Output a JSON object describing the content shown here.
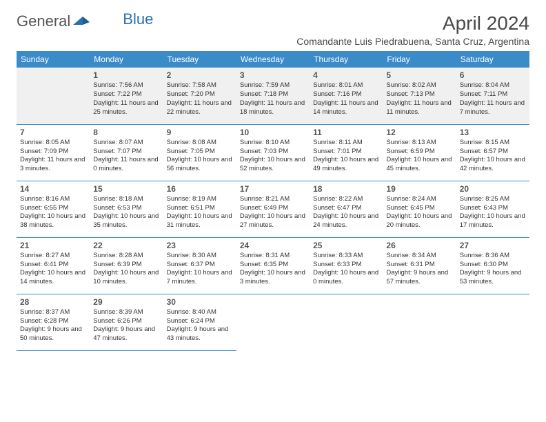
{
  "logo": {
    "text_general": "General",
    "text_blue": "Blue"
  },
  "title": "April 2024",
  "location": "Comandante Luis Piedrabuena, Santa Cruz, Argentina",
  "colors": {
    "header_bg": "#3b8bc9",
    "header_text": "#ffffff",
    "divider": "#3b8bc9",
    "daynum_bg": "#f0f0f0",
    "text": "#333333",
    "title_color": "#4a4a4a"
  },
  "day_headers": [
    "Sunday",
    "Monday",
    "Tuesday",
    "Wednesday",
    "Thursday",
    "Friday",
    "Saturday"
  ],
  "weeks": [
    [
      null,
      {
        "n": "1",
        "sr": "7:56 AM",
        "ss": "7:22 PM",
        "dl": "11 hours and 25 minutes."
      },
      {
        "n": "2",
        "sr": "7:58 AM",
        "ss": "7:20 PM",
        "dl": "11 hours and 22 minutes."
      },
      {
        "n": "3",
        "sr": "7:59 AM",
        "ss": "7:18 PM",
        "dl": "11 hours and 18 minutes."
      },
      {
        "n": "4",
        "sr": "8:01 AM",
        "ss": "7:16 PM",
        "dl": "11 hours and 14 minutes."
      },
      {
        "n": "5",
        "sr": "8:02 AM",
        "ss": "7:13 PM",
        "dl": "11 hours and 11 minutes."
      },
      {
        "n": "6",
        "sr": "8:04 AM",
        "ss": "7:11 PM",
        "dl": "11 hours and 7 minutes."
      }
    ],
    [
      {
        "n": "7",
        "sr": "8:05 AM",
        "ss": "7:09 PM",
        "dl": "11 hours and 3 minutes."
      },
      {
        "n": "8",
        "sr": "8:07 AM",
        "ss": "7:07 PM",
        "dl": "11 hours and 0 minutes."
      },
      {
        "n": "9",
        "sr": "8:08 AM",
        "ss": "7:05 PM",
        "dl": "10 hours and 56 minutes."
      },
      {
        "n": "10",
        "sr": "8:10 AM",
        "ss": "7:03 PM",
        "dl": "10 hours and 52 minutes."
      },
      {
        "n": "11",
        "sr": "8:11 AM",
        "ss": "7:01 PM",
        "dl": "10 hours and 49 minutes."
      },
      {
        "n": "12",
        "sr": "8:13 AM",
        "ss": "6:59 PM",
        "dl": "10 hours and 45 minutes."
      },
      {
        "n": "13",
        "sr": "8:15 AM",
        "ss": "6:57 PM",
        "dl": "10 hours and 42 minutes."
      }
    ],
    [
      {
        "n": "14",
        "sr": "8:16 AM",
        "ss": "6:55 PM",
        "dl": "10 hours and 38 minutes."
      },
      {
        "n": "15",
        "sr": "8:18 AM",
        "ss": "6:53 PM",
        "dl": "10 hours and 35 minutes."
      },
      {
        "n": "16",
        "sr": "8:19 AM",
        "ss": "6:51 PM",
        "dl": "10 hours and 31 minutes."
      },
      {
        "n": "17",
        "sr": "8:21 AM",
        "ss": "6:49 PM",
        "dl": "10 hours and 27 minutes."
      },
      {
        "n": "18",
        "sr": "8:22 AM",
        "ss": "6:47 PM",
        "dl": "10 hours and 24 minutes."
      },
      {
        "n": "19",
        "sr": "8:24 AM",
        "ss": "6:45 PM",
        "dl": "10 hours and 20 minutes."
      },
      {
        "n": "20",
        "sr": "8:25 AM",
        "ss": "6:43 PM",
        "dl": "10 hours and 17 minutes."
      }
    ],
    [
      {
        "n": "21",
        "sr": "8:27 AM",
        "ss": "6:41 PM",
        "dl": "10 hours and 14 minutes."
      },
      {
        "n": "22",
        "sr": "8:28 AM",
        "ss": "6:39 PM",
        "dl": "10 hours and 10 minutes."
      },
      {
        "n": "23",
        "sr": "8:30 AM",
        "ss": "6:37 PM",
        "dl": "10 hours and 7 minutes."
      },
      {
        "n": "24",
        "sr": "8:31 AM",
        "ss": "6:35 PM",
        "dl": "10 hours and 3 minutes."
      },
      {
        "n": "25",
        "sr": "8:33 AM",
        "ss": "6:33 PM",
        "dl": "10 hours and 0 minutes."
      },
      {
        "n": "26",
        "sr": "8:34 AM",
        "ss": "6:31 PM",
        "dl": "9 hours and 57 minutes."
      },
      {
        "n": "27",
        "sr": "8:36 AM",
        "ss": "6:30 PM",
        "dl": "9 hours and 53 minutes."
      }
    ],
    [
      {
        "n": "28",
        "sr": "8:37 AM",
        "ss": "6:28 PM",
        "dl": "9 hours and 50 minutes."
      },
      {
        "n": "29",
        "sr": "8:39 AM",
        "ss": "6:26 PM",
        "dl": "9 hours and 47 minutes."
      },
      {
        "n": "30",
        "sr": "8:40 AM",
        "ss": "6:24 PM",
        "dl": "9 hours and 43 minutes."
      },
      null,
      null,
      null,
      null
    ]
  ],
  "labels": {
    "sunrise": "Sunrise:",
    "sunset": "Sunset:",
    "daylight": "Daylight:"
  }
}
